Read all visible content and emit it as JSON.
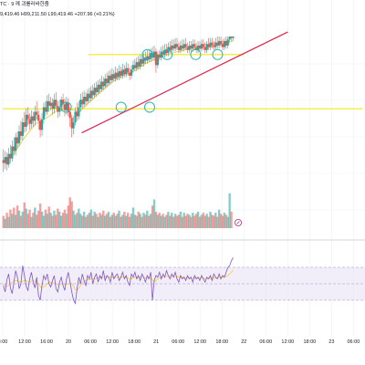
{
  "header": {
    "symbol": "TC · 9 께 괴롤러바한줌",
    "values": "9,419.46  H99,211.50  L99,419.46  +207.96 (+0.21%)"
  },
  "colors": {
    "up": "#26a69a",
    "down": "#ef5350",
    "ma": "#f5cc3b",
    "hline": "#f2e81a",
    "trend": "#e0224a",
    "circle": "#2bb5b5",
    "rsi": "#7e57c2",
    "rsi_ma": "#f5cc3b",
    "rsi_band": "#ede7f6",
    "grid": "#eceff5"
  },
  "icons": {
    "marker": "warning-icon"
  },
  "chart_data": {
    "type": "candlestick",
    "x_axis": {
      "ticks": [
        {
          "label": "8:00",
          "x": 0
        },
        {
          "label": "12:00",
          "x": 1
        },
        {
          "label": "16:00",
          "x": 2
        },
        {
          "label": "20",
          "x": 3
        },
        {
          "label": "06:00",
          "x": 4
        },
        {
          "label": "12:00",
          "x": 5
        },
        {
          "label": "18:00",
          "x": 6
        },
        {
          "label": "21",
          "x": 7
        },
        {
          "label": "06:00",
          "x": 8
        },
        {
          "label": "12:00",
          "x": 9
        },
        {
          "label": "18:00",
          "x": 10
        },
        {
          "label": "22",
          "x": 11
        },
        {
          "label": "06:00",
          "x": 12
        },
        {
          "label": "12:00",
          "x": 13
        },
        {
          "label": "18:00",
          "x": 14
        },
        {
          "label": "23",
          "x": 15
        },
        {
          "label": "06:00",
          "x": 16
        }
      ],
      "range": [
        0,
        16.4
      ]
    },
    "price_range": [
      0,
      100
    ],
    "candles": [
      [
        0.03,
        18,
        16,
        25,
        10
      ],
      [
        0.11,
        16,
        20,
        24,
        12
      ],
      [
        0.19,
        20,
        15,
        23,
        11
      ],
      [
        0.27,
        15,
        22,
        26,
        13
      ],
      [
        0.35,
        22,
        19,
        28,
        16
      ],
      [
        0.43,
        19,
        27,
        31,
        17
      ],
      [
        0.51,
        27,
        24,
        33,
        21
      ],
      [
        0.59,
        24,
        33,
        36,
        21
      ],
      [
        0.67,
        33,
        29,
        37,
        26
      ],
      [
        0.75,
        29,
        37,
        41,
        27
      ],
      [
        0.83,
        37,
        34,
        44,
        31
      ],
      [
        0.91,
        34,
        43,
        46,
        31
      ],
      [
        0.99,
        43,
        40,
        50,
        36
      ],
      [
        1.07,
        40,
        48,
        52,
        37
      ],
      [
        1.15,
        48,
        45,
        53,
        41
      ],
      [
        1.23,
        45,
        42,
        49,
        38
      ],
      [
        1.31,
        42,
        47,
        51,
        39
      ],
      [
        1.39,
        47,
        44,
        50,
        40
      ],
      [
        1.47,
        44,
        50,
        54,
        41
      ],
      [
        1.55,
        50,
        48,
        57,
        45
      ],
      [
        1.63,
        48,
        44,
        51,
        38
      ],
      [
        1.71,
        44,
        38,
        46,
        33
      ],
      [
        1.79,
        38,
        45,
        49,
        34
      ],
      [
        1.87,
        45,
        53,
        56,
        42
      ],
      [
        1.95,
        53,
        50,
        57,
        47
      ],
      [
        2.03,
        50,
        57,
        61,
        48
      ],
      [
        2.11,
        57,
        54,
        62,
        50
      ],
      [
        2.19,
        54,
        56,
        60,
        51
      ],
      [
        2.27,
        56,
        52,
        59,
        48
      ],
      [
        2.35,
        52,
        58,
        62,
        49
      ],
      [
        2.43,
        58,
        54,
        63,
        52
      ],
      [
        2.51,
        54,
        50,
        57,
        46
      ],
      [
        2.59,
        50,
        53,
        58,
        47
      ],
      [
        2.67,
        53,
        58,
        60,
        50
      ],
      [
        2.75,
        58,
        55,
        62,
        52
      ],
      [
        2.83,
        55,
        51,
        59,
        47
      ],
      [
        2.91,
        51,
        56,
        60,
        48
      ],
      [
        2.99,
        56,
        50,
        59,
        47
      ],
      [
        3.07,
        50,
        46,
        53,
        40
      ],
      [
        3.15,
        46,
        39,
        48,
        33
      ],
      [
        3.23,
        39,
        43,
        47,
        35
      ],
      [
        3.31,
        43,
        50,
        53,
        41
      ],
      [
        3.39,
        50,
        47,
        56,
        44
      ],
      [
        3.47,
        47,
        53,
        57,
        45
      ],
      [
        3.55,
        53,
        58,
        62,
        50
      ],
      [
        3.63,
        58,
        55,
        63,
        52
      ],
      [
        3.71,
        55,
        60,
        64,
        53
      ],
      [
        3.79,
        60,
        57,
        63,
        54
      ],
      [
        3.87,
        57,
        62,
        65,
        55
      ],
      [
        3.95,
        62,
        59,
        66,
        56
      ],
      [
        4.03,
        59,
        64,
        67,
        57
      ],
      [
        4.11,
        64,
        61,
        68,
        58
      ],
      [
        4.19,
        61,
        66,
        69,
        59
      ],
      [
        4.27,
        66,
        63,
        70,
        60
      ],
      [
        4.35,
        63,
        68,
        71,
        61
      ],
      [
        4.43,
        68,
        65,
        72,
        62
      ],
      [
        4.51,
        65,
        70,
        74,
        63
      ],
      [
        4.59,
        70,
        67,
        73,
        64
      ],
      [
        4.67,
        67,
        72,
        75,
        65
      ],
      [
        4.75,
        72,
        69,
        76,
        66
      ],
      [
        4.83,
        69,
        74,
        77,
        67
      ],
      [
        4.91,
        74,
        71,
        78,
        68
      ],
      [
        4.99,
        71,
        75,
        79,
        69
      ],
      [
        5.07,
        75,
        72,
        78,
        70
      ],
      [
        5.15,
        72,
        76,
        80,
        70
      ],
      [
        5.23,
        76,
        73,
        79,
        71
      ],
      [
        5.31,
        73,
        77,
        81,
        71
      ],
      [
        5.39,
        77,
        74,
        80,
        72
      ],
      [
        5.47,
        74,
        78,
        82,
        72
      ],
      [
        5.55,
        78,
        75,
        81,
        73
      ],
      [
        5.63,
        75,
        79,
        83,
        73
      ],
      [
        5.71,
        79,
        76,
        82,
        74
      ],
      [
        5.79,
        76,
        74,
        79,
        71
      ],
      [
        5.87,
        74,
        78,
        81,
        72
      ],
      [
        5.95,
        78,
        81,
        84,
        76
      ],
      [
        6.03,
        81,
        79,
        85,
        77
      ],
      [
        6.11,
        79,
        83,
        86,
        77
      ],
      [
        6.19,
        83,
        80,
        87,
        78
      ],
      [
        6.27,
        80,
        85,
        88,
        78
      ],
      [
        6.35,
        85,
        82,
        88,
        80
      ],
      [
        6.43,
        82,
        86,
        89,
        80
      ],
      [
        6.51,
        86,
        84,
        90,
        82
      ],
      [
        6.59,
        84,
        87,
        91,
        82
      ],
      [
        6.67,
        87,
        85,
        91,
        83
      ],
      [
        6.75,
        85,
        89,
        92,
        83
      ],
      [
        6.83,
        89,
        86,
        93,
        84
      ],
      [
        6.91,
        86,
        90,
        94,
        84
      ],
      [
        6.99,
        90,
        81,
        92,
        76
      ],
      [
        7.07,
        81,
        88,
        90,
        79
      ],
      [
        7.15,
        88,
        86,
        91,
        84
      ],
      [
        7.23,
        86,
        90,
        93,
        84
      ],
      [
        7.31,
        90,
        88,
        94,
        86
      ],
      [
        7.39,
        88,
        91,
        95,
        86
      ],
      [
        7.47,
        91,
        89,
        95,
        87
      ],
      [
        7.55,
        89,
        93,
        96,
        87
      ],
      [
        7.63,
        93,
        91,
        97,
        89
      ],
      [
        7.71,
        91,
        94,
        98,
        89
      ],
      [
        7.79,
        94,
        92,
        98,
        90
      ],
      [
        7.87,
        92,
        95,
        99,
        90
      ],
      [
        7.95,
        95,
        93,
        99,
        91
      ],
      [
        8.03,
        93,
        91,
        96,
        89
      ],
      [
        8.11,
        91,
        94,
        97,
        89
      ],
      [
        8.19,
        94,
        92,
        98,
        90
      ],
      [
        8.27,
        92,
        95,
        98,
        90
      ],
      [
        8.35,
        95,
        93,
        99,
        91
      ],
      [
        8.43,
        93,
        91,
        96,
        89
      ],
      [
        8.51,
        91,
        94,
        97,
        89
      ],
      [
        8.59,
        94,
        92,
        97,
        90
      ],
      [
        8.67,
        92,
        95,
        98,
        90
      ],
      [
        8.75,
        95,
        93,
        98,
        91
      ],
      [
        8.83,
        93,
        91,
        96,
        89
      ],
      [
        8.91,
        91,
        94,
        97,
        89
      ],
      [
        8.99,
        94,
        92,
        97,
        90
      ],
      [
        9.07,
        92,
        95,
        98,
        90
      ],
      [
        9.15,
        95,
        93,
        98,
        91
      ],
      [
        9.23,
        93,
        91,
        96,
        89
      ],
      [
        9.31,
        91,
        95,
        97,
        89
      ],
      [
        9.39,
        95,
        93,
        99,
        91
      ],
      [
        9.47,
        93,
        96,
        99,
        91
      ],
      [
        9.55,
        96,
        94,
        99,
        92
      ],
      [
        9.63,
        94,
        93,
        97,
        91
      ],
      [
        9.71,
        93,
        96,
        99,
        91
      ],
      [
        9.79,
        96,
        94,
        100,
        92
      ],
      [
        9.87,
        94,
        97,
        100,
        92
      ],
      [
        9.95,
        97,
        95,
        100,
        93
      ],
      [
        10.03,
        95,
        93,
        98,
        91
      ],
      [
        10.11,
        93,
        97,
        99,
        91
      ],
      [
        10.19,
        97,
        94,
        100,
        92
      ],
      [
        10.27,
        94,
        98,
        100,
        92
      ],
      [
        10.35,
        98,
        100,
        100,
        96
      ],
      [
        10.43,
        100,
        99,
        100,
        97
      ],
      [
        10.51,
        99,
        100,
        100,
        97
      ]
    ],
    "ma_line": [
      [
        0.0,
        16
      ],
      [
        0.5,
        22
      ],
      [
        1.0,
        33
      ],
      [
        1.5,
        42
      ],
      [
        2.0,
        46
      ],
      [
        2.5,
        51
      ],
      [
        3.0,
        52
      ],
      [
        3.5,
        50
      ],
      [
        4.0,
        57
      ],
      [
        4.5,
        64
      ],
      [
        5.0,
        70
      ],
      [
        5.5,
        74
      ],
      [
        6.0,
        77
      ],
      [
        6.5,
        82
      ],
      [
        7.0,
        85
      ],
      [
        7.5,
        88
      ],
      [
        8.0,
        90
      ],
      [
        8.5,
        92
      ],
      [
        9.0,
        92
      ],
      [
        9.5,
        93
      ],
      [
        10.0,
        95
      ],
      [
        10.5,
        97
      ]
    ],
    "hlines": [
      {
        "y": 88,
        "x_from": 3.9,
        "x_to": 11.0
      },
      {
        "y": 52,
        "x_from": 0.0,
        "x_to": 16.4
      }
    ],
    "trendline": {
      "from": [
        3.6,
        36
      ],
      "to": [
        13.0,
        103
      ]
    },
    "circles": [
      [
        2.9,
        53
      ],
      [
        5.4,
        53
      ],
      [
        6.7,
        53
      ],
      [
        6.6,
        88
      ],
      [
        7.5,
        88
      ],
      [
        8.8,
        88
      ],
      [
        9.8,
        88
      ]
    ],
    "volume": [
      12,
      9,
      15,
      11,
      18,
      14,
      20,
      13,
      22,
      17,
      12,
      16,
      25,
      19,
      14,
      18,
      11,
      15,
      20,
      13,
      17,
      24,
      16,
      12,
      18,
      14,
      21,
      15,
      12,
      17,
      13,
      19,
      16,
      12,
      15,
      18,
      14,
      22,
      30,
      26,
      17,
      13,
      15,
      19,
      14,
      12,
      16,
      11,
      13,
      15,
      18,
      12,
      16,
      14,
      11,
      15,
      13,
      17,
      12,
      14,
      16,
      11,
      13,
      15,
      12,
      14,
      17,
      11,
      13,
      16,
      12,
      15,
      11,
      14,
      20,
      13,
      12,
      16,
      14,
      11,
      15,
      13,
      17,
      12,
      14,
      22,
      28,
      16,
      13,
      15,
      12,
      14,
      11,
      13,
      16,
      12,
      15,
      11,
      14,
      12,
      13,
      16,
      11,
      15,
      12,
      14,
      13,
      11,
      15,
      12,
      14,
      16,
      11,
      13,
      15,
      12,
      14,
      11,
      16,
      13,
      12,
      15,
      11,
      18,
      14,
      12,
      15,
      13,
      11,
      34,
      16
    ],
    "volume_max": 40,
    "rsi": {
      "range": [
        0,
        100
      ],
      "bands": [
        70,
        50,
        30
      ],
      "values": [
        48,
        40,
        55,
        62,
        45,
        38,
        52,
        66,
        58,
        44,
        50,
        72,
        60,
        47,
        42,
        56,
        64,
        52,
        45,
        58,
        36,
        30,
        48,
        60,
        55,
        62,
        50,
        46,
        54,
        60,
        44,
        40,
        52,
        58,
        48,
        42,
        56,
        64,
        52,
        40,
        30,
        26,
        44,
        58,
        50,
        62,
        54,
        48,
        60,
        56,
        64,
        50,
        58,
        62,
        52,
        60,
        56,
        66,
        54,
        60,
        58,
        52,
        64,
        56,
        60,
        62,
        54,
        58,
        64,
        56,
        60,
        52,
        48,
        62,
        58,
        64,
        56,
        60,
        54,
        62,
        58,
        52,
        60,
        56,
        64,
        30,
        54,
        60,
        58,
        64,
        56,
        62,
        58,
        66,
        60,
        56,
        62,
        58,
        64,
        56,
        52,
        60,
        56,
        58,
        54,
        60,
        56,
        58,
        52,
        60,
        56,
        58,
        54,
        60,
        56,
        52,
        58,
        56,
        60,
        54,
        62,
        58,
        56,
        62,
        56,
        60,
        58,
        64,
        70,
        72,
        78,
        82
      ],
      "ma": [
        50,
        48,
        47,
        48,
        50,
        52,
        53,
        54,
        54,
        53,
        52,
        53,
        54,
        54,
        53,
        52,
        53,
        54,
        53,
        52,
        50,
        47,
        45,
        46,
        48,
        50,
        52,
        52,
        51,
        51,
        50,
        49,
        49,
        50,
        50,
        49,
        49,
        50,
        51,
        50,
        47,
        43,
        42,
        45,
        48,
        51,
        53,
        54,
        55,
        55,
        56,
        56,
        56,
        57,
        57,
        57,
        58,
        58,
        58,
        58,
        58,
        58,
        58,
        58,
        58,
        58,
        58,
        58,
        58,
        58,
        58,
        57,
        56,
        56,
        57,
        58,
        58,
        58,
        58,
        58,
        58,
        57,
        57,
        57,
        58,
        55,
        52,
        54,
        56,
        57,
        58,
        58,
        59,
        59,
        59,
        59,
        59,
        59,
        59,
        59,
        58,
        58,
        58,
        58,
        57,
        57,
        57,
        57,
        57,
        57,
        57,
        57,
        57,
        57,
        57,
        56,
        56,
        56,
        57,
        57,
        57,
        57,
        57,
        58,
        58,
        58,
        58,
        59,
        60,
        62,
        64,
        67
      ]
    }
  }
}
